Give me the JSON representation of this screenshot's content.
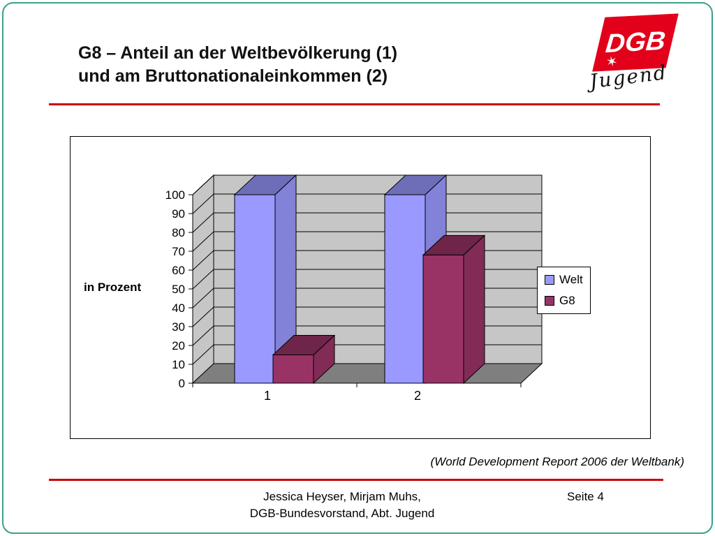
{
  "slide": {
    "title_line1": "G8 – Anteil an der Weltbevölkerung (1)",
    "title_line2": "und am Bruttonationaleinkommen (2)",
    "source_note": "(World Development Report 2006 der Weltbank)",
    "footer_line1": "Jessica Heyser, Mirjam Muhs,",
    "footer_line2": "DGB-Bundesvorstand, Abt. Jugend",
    "page_label": "Seite 4",
    "accent_color": "#cc0000",
    "border_color": "#3aa08a"
  },
  "logo": {
    "text": "DGB",
    "subtext": "Jugend",
    "star": "✶",
    "color": "#e2001a"
  },
  "chart_data": {
    "type": "bar",
    "subtype": "3d-clustered-column",
    "categories": [
      "1",
      "2"
    ],
    "series": [
      {
        "name": "Welt",
        "color": "#9999ff",
        "values": [
          100,
          100
        ]
      },
      {
        "name": "G8",
        "color": "#993366",
        "values": [
          15,
          68
        ]
      }
    ],
    "title": "",
    "xlabel": "",
    "ylabel": "in Prozent",
    "ylim": [
      0,
      100
    ],
    "ytick_step": 10,
    "grid": true,
    "legend_position": "right",
    "wall_color": "#c6c6c6",
    "floor_color": "#7f7f7f"
  }
}
